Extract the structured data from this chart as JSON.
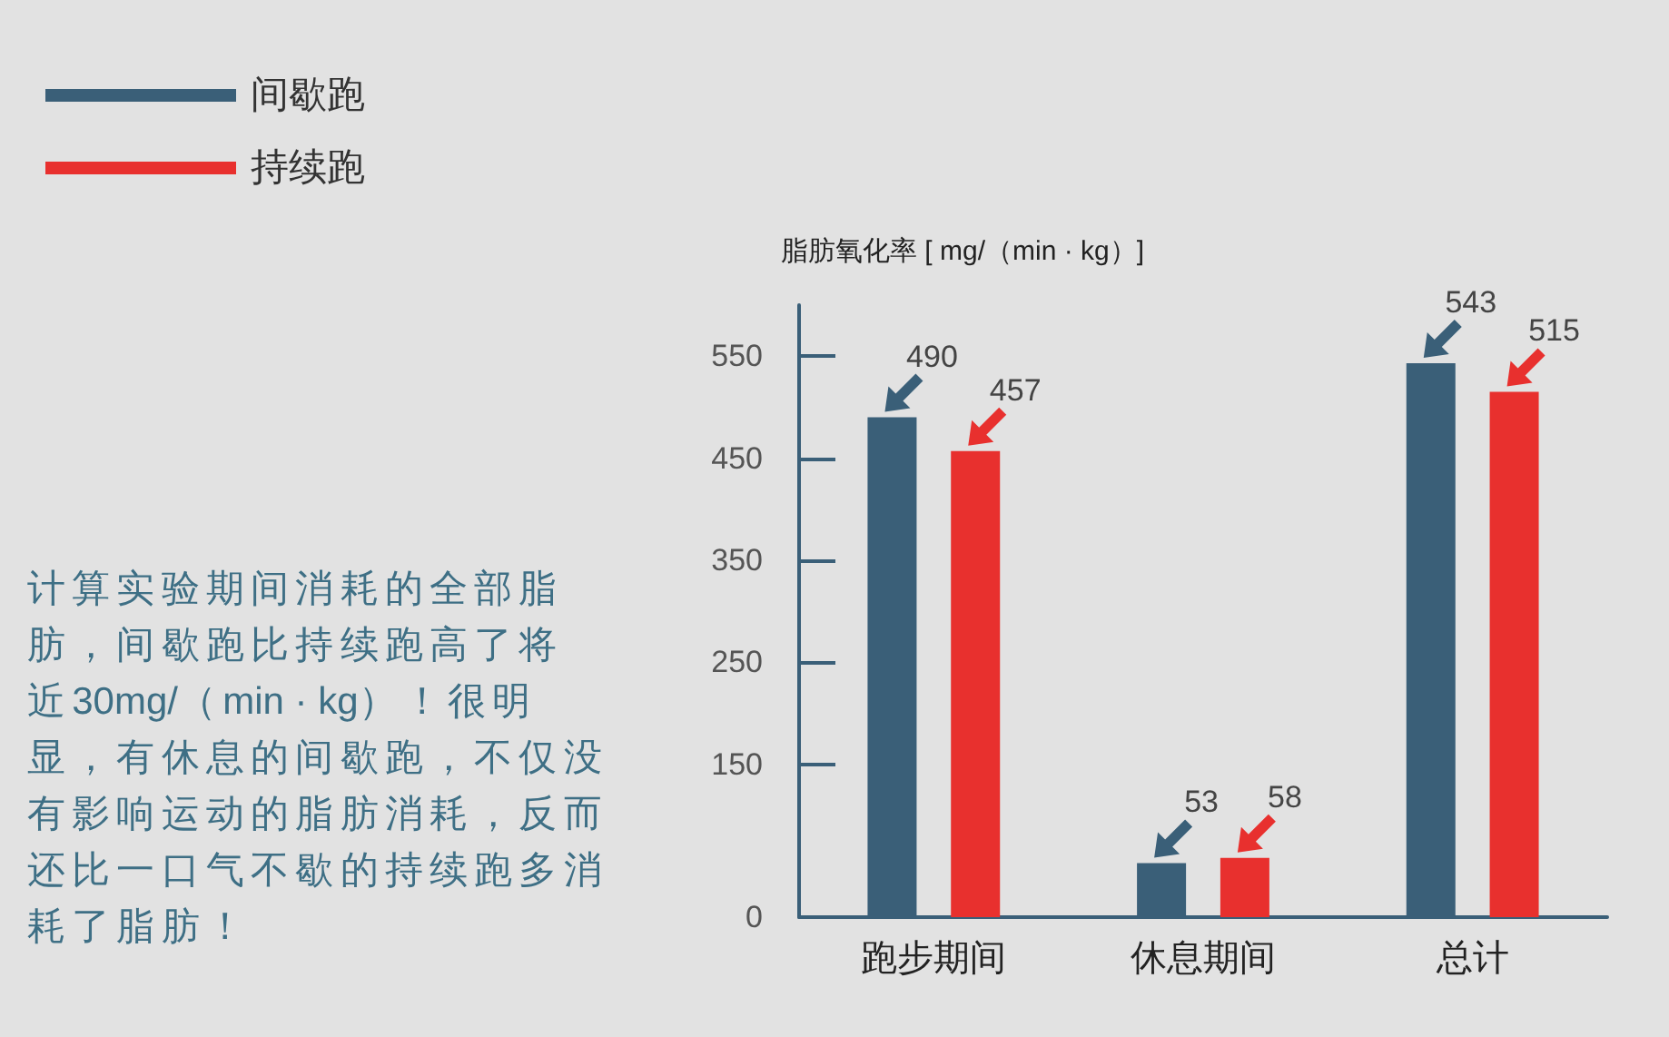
{
  "chart_data": {
    "type": "bar",
    "ylabel": "脂肪氧化率 [ mg/（min · kg）]",
    "categories": [
      "跑步期间",
      "休息期间",
      "总计"
    ],
    "series": [
      {
        "name": "间歇跑",
        "color": "#3a5f78",
        "values": [
          490,
          53,
          543
        ]
      },
      {
        "name": "持续跑",
        "color": "#e8302e",
        "values": [
          457,
          58,
          515
        ]
      }
    ],
    "ylim": [
      0,
      600
    ],
    "yticks": [
      0,
      150,
      250,
      350,
      450,
      550
    ],
    "data_labels": true,
    "legend": "top left",
    "annotations": [
      "计算实验期间消耗的全部脂肪，间歇跑比持续跑高了将近30mg/（min · kg）！很明显，有休息的间歇跑，不仅没有影响运动的脂肪消耗，反而还比一口气不歇的持续跑多消耗了脂肪！"
    ]
  }
}
